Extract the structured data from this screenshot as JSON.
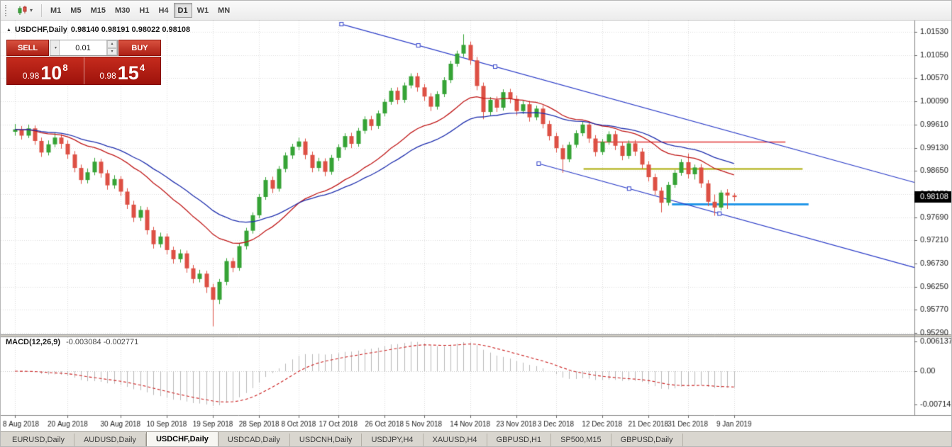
{
  "toolbar": {
    "timeframes": [
      "M1",
      "M5",
      "M15",
      "M30",
      "H1",
      "H4",
      "D1",
      "W1",
      "MN"
    ],
    "selected_timeframe": "D1"
  },
  "chart_header": {
    "symbol_title": "USDCHF,Daily",
    "ohlc": "0.98140 0.98191 0.98022 0.98108"
  },
  "trade_panel": {
    "sell_label": "SELL",
    "buy_label": "BUY",
    "volume": "0.01",
    "sell_price_prefix": "0.98",
    "sell_price_main": "10",
    "sell_price_sup": "8",
    "buy_price_prefix": "0.98",
    "buy_price_main": "15",
    "buy_price_sup": "4"
  },
  "indicator_label": {
    "name": "MACD(12,26,9)",
    "values": "-0.003084 -0.002771"
  },
  "axes": {
    "price_labels": [
      "1.01530",
      "1.01050",
      "1.00570",
      "1.00090",
      "0.99610",
      "0.99130",
      "0.98650",
      "0.98170",
      "0.97690",
      "0.97210",
      "0.96730",
      "0.96250",
      "0.95770",
      "0.95290"
    ],
    "current_price": "0.98108",
    "macd_labels": [
      "0.0061370",
      "0.00",
      "-0.0071420"
    ],
    "date_labels": [
      "8 Aug 2018",
      "20 Aug 2018",
      "30 Aug 2018",
      "10 Sep 2018",
      "19 Sep 2018",
      "28 Sep 2018",
      "8 Oct 2018",
      "17 Oct 2018",
      "26 Oct 2018",
      "5 Nov 2018",
      "14 Nov 2018",
      "23 Nov 2018",
      "3 Dec 2018",
      "12 Dec 2018",
      "21 Dec 2018",
      "31 Dec 2018",
      "9 Jan 2019"
    ]
  },
  "tabs": {
    "items": [
      "EURUSD,Daily",
      "AUDUSD,Daily",
      "USDCHF,Daily",
      "USDCAD,Daily",
      "USDCNH,Daily",
      "USDJPY,H4",
      "XAUUSD,H4",
      "GBPUSD,H1",
      "SP500,M15",
      "GBPUSD,Daily"
    ],
    "active": "USDCHF,Daily"
  },
  "chart_data": {
    "type": "candlestick",
    "symbol": "USDCHF",
    "timeframe": "Daily",
    "title": "USDCHF,Daily",
    "price_axis": {
      "top": 1.0153,
      "step": 0.0048,
      "lines": 14
    },
    "colors": {
      "up": "#35a335",
      "down": "#dd5044",
      "ma_fast": "#c01717",
      "ma_slow": "#1f2fae",
      "trendline": "#2b3cc8",
      "macd_hist": "#b9b9b9",
      "macd_signal": "#cc2222"
    },
    "date_tick_indices": [
      0,
      8,
      16,
      23,
      30,
      37,
      43,
      49,
      56,
      62,
      69,
      76,
      82,
      89,
      96,
      102,
      109
    ],
    "ohlc": [
      [
        0.9946,
        0.9962,
        0.9938,
        0.9951
      ],
      [
        0.9951,
        0.9958,
        0.993,
        0.9938
      ],
      [
        0.9938,
        0.9961,
        0.9933,
        0.9953
      ],
      [
        0.9953,
        0.9959,
        0.9919,
        0.9927
      ],
      [
        0.9927,
        0.9934,
        0.9894,
        0.9903
      ],
      [
        0.9903,
        0.9928,
        0.9897,
        0.992
      ],
      [
        0.992,
        0.9945,
        0.9914,
        0.9934
      ],
      [
        0.9934,
        0.9941,
        0.9911,
        0.9921
      ],
      [
        0.9921,
        0.9928,
        0.989,
        0.9899
      ],
      [
        0.9899,
        0.9906,
        0.9862,
        0.9871
      ],
      [
        0.9871,
        0.9878,
        0.9838,
        0.9846
      ],
      [
        0.9846,
        0.987,
        0.9839,
        0.9862
      ],
      [
        0.9862,
        0.9892,
        0.9856,
        0.9884
      ],
      [
        0.9884,
        0.989,
        0.9851,
        0.986
      ],
      [
        0.986,
        0.9867,
        0.9826,
        0.9835
      ],
      [
        0.9835,
        0.9856,
        0.9828,
        0.9848
      ],
      [
        0.9848,
        0.9854,
        0.9813,
        0.9822
      ],
      [
        0.9822,
        0.9829,
        0.9786,
        0.9795
      ],
      [
        0.9795,
        0.9803,
        0.9759,
        0.9768
      ],
      [
        0.9768,
        0.9792,
        0.9761,
        0.9784
      ],
      [
        0.9784,
        0.979,
        0.9733,
        0.9742
      ],
      [
        0.9742,
        0.9749,
        0.9704,
        0.9713
      ],
      [
        0.9713,
        0.9737,
        0.9706,
        0.9729
      ],
      [
        0.9729,
        0.9735,
        0.9692,
        0.9701
      ],
      [
        0.9701,
        0.9708,
        0.9673,
        0.9682
      ],
      [
        0.9682,
        0.9702,
        0.9675,
        0.9694
      ],
      [
        0.9694,
        0.97,
        0.9654,
        0.9663
      ],
      [
        0.9663,
        0.967,
        0.9632,
        0.9641
      ],
      [
        0.9641,
        0.966,
        0.9634,
        0.9652
      ],
      [
        0.9652,
        0.9658,
        0.9612,
        0.9624
      ],
      [
        0.9624,
        0.9631,
        0.9543,
        0.9598
      ],
      [
        0.9598,
        0.9641,
        0.9589,
        0.9635
      ],
      [
        0.9635,
        0.9684,
        0.9628,
        0.9678
      ],
      [
        0.9678,
        0.9685,
        0.9655,
        0.9664
      ],
      [
        0.9664,
        0.9715,
        0.9658,
        0.9709
      ],
      [
        0.9709,
        0.9747,
        0.9702,
        0.9741
      ],
      [
        0.9741,
        0.9779,
        0.9735,
        0.9773
      ],
      [
        0.9773,
        0.9817,
        0.9767,
        0.9811
      ],
      [
        0.9811,
        0.9852,
        0.9805,
        0.9846
      ],
      [
        0.9846,
        0.9853,
        0.9819,
        0.9828
      ],
      [
        0.9828,
        0.9875,
        0.9822,
        0.9869
      ],
      [
        0.9869,
        0.9903,
        0.9862,
        0.9897
      ],
      [
        0.9897,
        0.9921,
        0.989,
        0.9915
      ],
      [
        0.9915,
        0.9934,
        0.9908,
        0.9926
      ],
      [
        0.9926,
        0.9932,
        0.9889,
        0.9898
      ],
      [
        0.9898,
        0.9905,
        0.9862,
        0.9871
      ],
      [
        0.9871,
        0.9892,
        0.9864,
        0.9885
      ],
      [
        0.9885,
        0.9891,
        0.9854,
        0.9863
      ],
      [
        0.9863,
        0.9898,
        0.9857,
        0.9892
      ],
      [
        0.9892,
        0.992,
        0.9886,
        0.9914
      ],
      [
        0.9914,
        0.9943,
        0.9908,
        0.9937
      ],
      [
        0.9937,
        0.9944,
        0.9912,
        0.9921
      ],
      [
        0.9921,
        0.9954,
        0.9915,
        0.9948
      ],
      [
        0.9948,
        0.9978,
        0.9942,
        0.9972
      ],
      [
        0.9972,
        0.9979,
        0.9949,
        0.9958
      ],
      [
        0.9958,
        0.999,
        0.9952,
        0.9984
      ],
      [
        0.9984,
        1.0014,
        0.9978,
        1.0008
      ],
      [
        1.0008,
        1.0037,
        1.0002,
        1.0031
      ],
      [
        1.0031,
        1.0038,
        1.0003,
        1.0012
      ],
      [
        1.0012,
        1.0048,
        1.0006,
        1.0042
      ],
      [
        1.0042,
        1.0067,
        1.0036,
        1.0061
      ],
      [
        1.0061,
        1.0068,
        1.0029,
        1.0038
      ],
      [
        1.0038,
        1.0045,
        1.001,
        1.0019
      ],
      [
        1.0019,
        1.0026,
        0.9989,
        0.9998
      ],
      [
        0.9998,
        1.003,
        0.9992,
        1.0024
      ],
      [
        1.0024,
        1.0059,
        1.0018,
        1.0053
      ],
      [
        1.0053,
        1.0093,
        1.0047,
        1.0087
      ],
      [
        1.0087,
        1.0114,
        1.0081,
        1.0108
      ],
      [
        1.0108,
        1.0148,
        1.0101,
        1.0126
      ],
      [
        1.0126,
        1.0133,
        1.0085,
        1.0094
      ],
      [
        1.0094,
        1.0101,
        1.0032,
        1.0041
      ],
      [
        1.0041,
        1.0048,
        0.9972,
        0.9987
      ],
      [
        0.9987,
        1.0018,
        0.998,
        1.0012
      ],
      [
        1.0012,
        1.0019,
        0.9987,
        0.9996
      ],
      [
        0.9996,
        1.0034,
        0.999,
        1.0028
      ],
      [
        1.0028,
        1.0035,
        1.0005,
        1.0014
      ],
      [
        1.0014,
        1.0021,
        0.998,
        0.9989
      ],
      [
        0.9989,
        1.001,
        0.9983,
        1.0003
      ],
      [
        1.0003,
        1.001,
        0.9967,
        0.9976
      ],
      [
        0.9976,
        1.0,
        0.997,
        0.9994
      ],
      [
        0.9994,
        1.0001,
        0.9953,
        0.9962
      ],
      [
        0.9962,
        0.9969,
        0.9928,
        0.9937
      ],
      [
        0.9937,
        0.9944,
        0.9903,
        0.9912
      ],
      [
        0.9912,
        0.9919,
        0.9861,
        0.9889
      ],
      [
        0.9889,
        0.9925,
        0.9883,
        0.9919
      ],
      [
        0.9919,
        0.9949,
        0.9913,
        0.9943
      ],
      [
        0.9943,
        0.9967,
        0.9937,
        0.9961
      ],
      [
        0.9961,
        0.9968,
        0.9923,
        0.9932
      ],
      [
        0.9932,
        0.9939,
        0.9895,
        0.9904
      ],
      [
        0.9904,
        0.9931,
        0.9898,
        0.9925
      ],
      [
        0.9925,
        0.9947,
        0.9919,
        0.9941
      ],
      [
        0.9941,
        0.9948,
        0.9908,
        0.9917
      ],
      [
        0.9917,
        0.9924,
        0.9887,
        0.9896
      ],
      [
        0.9896,
        0.9928,
        0.989,
        0.9922
      ],
      [
        0.9922,
        0.9929,
        0.9896,
        0.9905
      ],
      [
        0.9905,
        0.9912,
        0.9869,
        0.9878
      ],
      [
        0.9878,
        0.9885,
        0.9843,
        0.9852
      ],
      [
        0.9852,
        0.9859,
        0.9815,
        0.9824
      ],
      [
        0.9824,
        0.9831,
        0.9779,
        0.9799
      ],
      [
        0.9799,
        0.9842,
        0.9793,
        0.9836
      ],
      [
        0.9836,
        0.9867,
        0.983,
        0.9861
      ],
      [
        0.9861,
        0.9889,
        0.9855,
        0.9883
      ],
      [
        0.9883,
        0.9901,
        0.9849,
        0.9858
      ],
      [
        0.9858,
        0.9878,
        0.9847,
        0.9872
      ],
      [
        0.9872,
        0.9879,
        0.983,
        0.9839
      ],
      [
        0.9839,
        0.9846,
        0.9792,
        0.9801
      ],
      [
        0.9801,
        0.9816,
        0.9772,
        0.9789
      ],
      [
        0.9789,
        0.9825,
        0.9783,
        0.982
      ],
      [
        0.982,
        0.9827,
        0.9786,
        0.9814
      ],
      [
        0.9814,
        0.98191,
        0.98022,
        0.98108
      ]
    ],
    "moving_averages": [
      {
        "period": 21,
        "color": "#c01717"
      },
      {
        "period": 34,
        "color": "#1f2fae"
      }
    ],
    "macd": {
      "fast": 12,
      "slow": 26,
      "signal": 9,
      "value": -0.003084,
      "signal_value": -0.002771,
      "scale_top": 0.006137,
      "scale_bottom": -0.007142
    },
    "trendlines": [
      {
        "i1": 49.5,
        "p1": 1.0169,
        "i2": 72.8,
        "p2": 1.0081,
        "ray": true
      },
      {
        "i1": 79.4,
        "p1": 0.988,
        "i2": 106.8,
        "p2": 0.97764,
        "ray": true
      }
    ],
    "hlines": [
      {
        "price": 0.9925,
        "i1": 87.7,
        "i2": 116.8,
        "color": "#e03131",
        "width": 1.5
      },
      {
        "price": 0.9869,
        "i1": 86.2,
        "i2": 119.4,
        "color": "#ababoo",
        "width": 2
      },
      {
        "price": 0.9796,
        "i1": 99.6,
        "i2": 120.3,
        "color": "#2196e8",
        "width": 3
      }
    ]
  }
}
